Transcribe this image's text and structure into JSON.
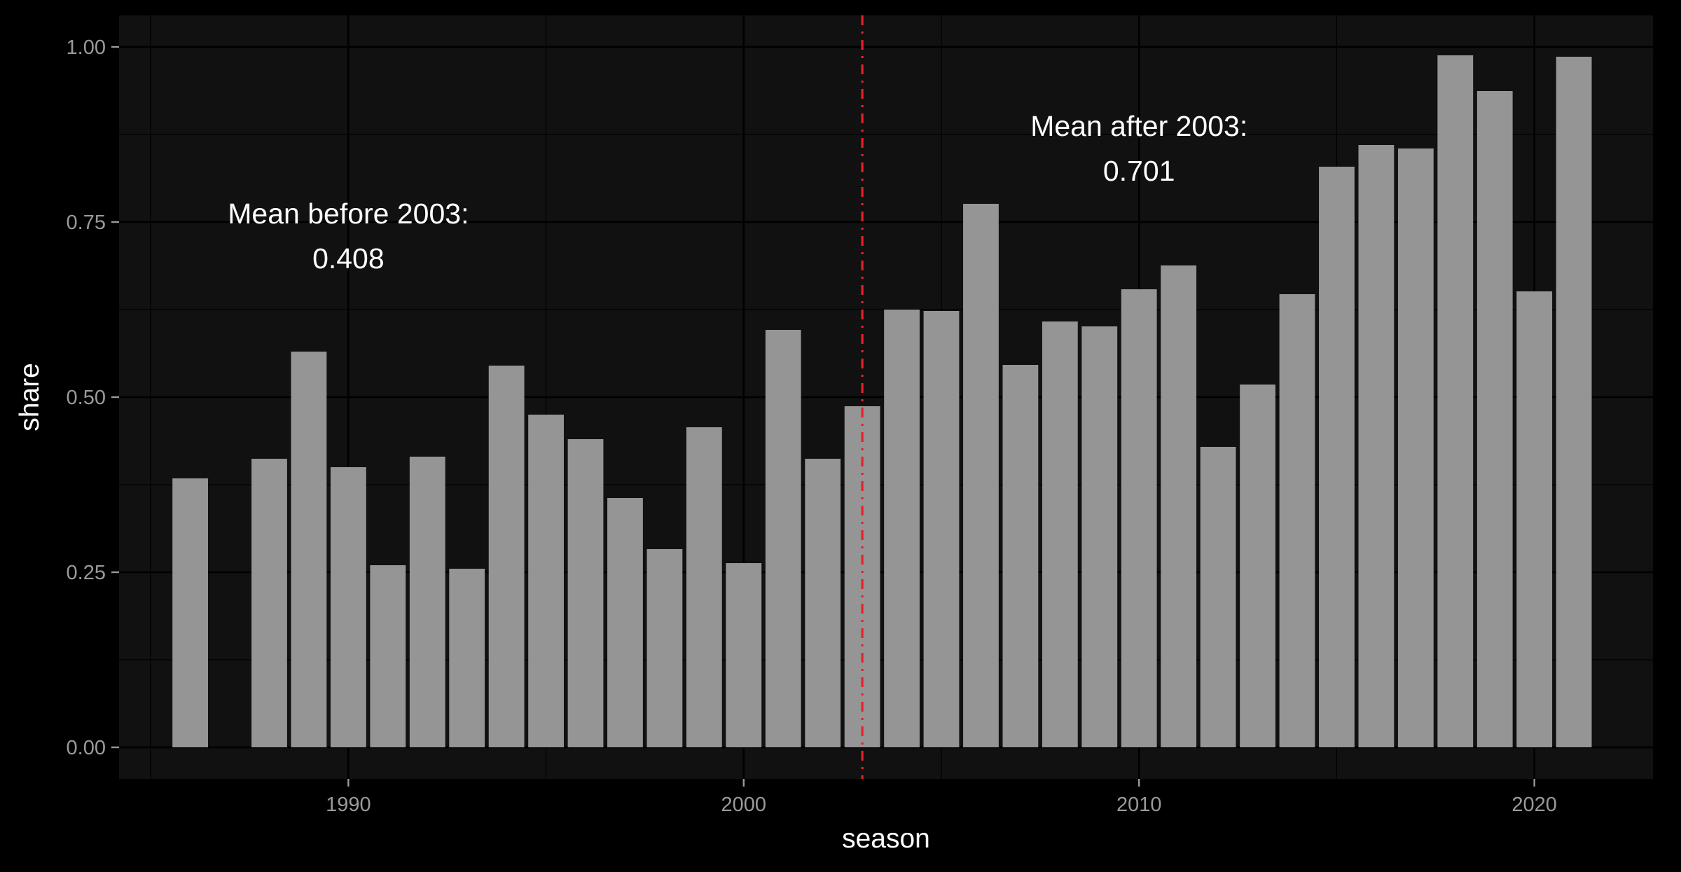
{
  "chart_data": {
    "type": "bar",
    "xlabel": "season",
    "ylabel": "share",
    "xlim": [
      1984.2,
      2023
    ],
    "ylim": [
      -0.045,
      1.045
    ],
    "x_ticks": [
      {
        "value": 1990,
        "label": "1990"
      },
      {
        "value": 2000,
        "label": "2000"
      },
      {
        "value": 2010,
        "label": "2010"
      },
      {
        "value": 2020,
        "label": "2020"
      }
    ],
    "y_ticks": [
      {
        "value": 0,
        "label": "0.00"
      },
      {
        "value": 0.25,
        "label": "0.25"
      },
      {
        "value": 0.5,
        "label": "0.50"
      },
      {
        "value": 0.75,
        "label": "0.75"
      },
      {
        "value": 1,
        "label": "1.00"
      }
    ],
    "x": [
      1986,
      1988,
      1989,
      1990,
      1991,
      1992,
      1993,
      1994,
      1995,
      1996,
      1997,
      1998,
      1999,
      2000,
      2001,
      2002,
      2003,
      2004,
      2005,
      2006,
      2007,
      2008,
      2009,
      2010,
      2011,
      2012,
      2013,
      2014,
      2015,
      2016,
      2017,
      2018,
      2019,
      2020,
      2021
    ],
    "values": [
      0.384,
      0.412,
      0.565,
      0.4,
      0.26,
      0.415,
      0.255,
      0.545,
      0.475,
      0.44,
      0.356,
      0.283,
      0.457,
      0.263,
      0.596,
      0.412,
      0.487,
      0.625,
      0.623,
      0.776,
      0.546,
      0.608,
      0.601,
      0.654,
      0.688,
      0.429,
      0.518,
      0.647,
      0.829,
      0.86,
      0.855,
      0.988,
      0.937,
      0.651,
      0.986
    ],
    "vline": {
      "x": 2003,
      "color": "#e8202a",
      "style": "dashdot"
    },
    "annotations": [
      {
        "line1": "Mean before 2003:",
        "line2": "0.408",
        "x": 1990,
        "y": 0.72
      },
      {
        "line1": "Mean after 2003:",
        "line2": "0.701",
        "x": 2010,
        "y": 0.845
      }
    ],
    "colors": {
      "background": "#000000",
      "panel": "#111111",
      "grid": "#000000",
      "bar": "#959595",
      "tick_text": "#9a9a9a",
      "title_text": "#ffffff"
    },
    "grid": true,
    "legend": "none"
  }
}
